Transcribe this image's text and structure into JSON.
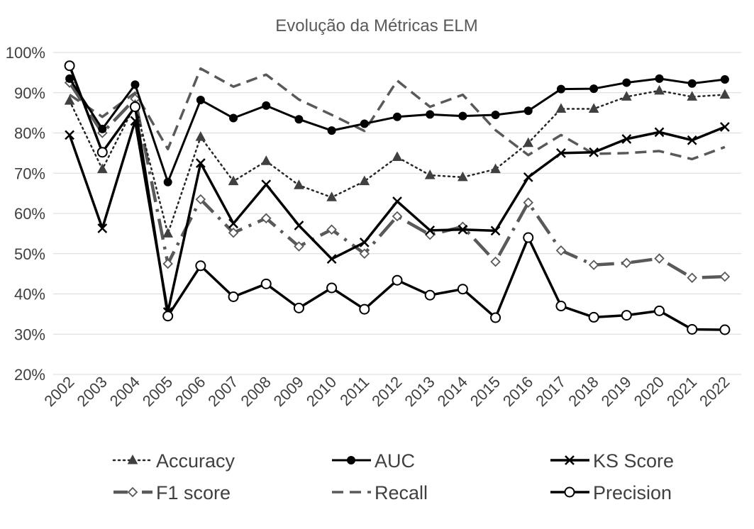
{
  "chart_data": {
    "type": "line",
    "title": "Evolução da Métricas ELM",
    "xlabel": "",
    "ylabel": "",
    "x": [
      "2002",
      "2003",
      "2004",
      "2005",
      "2006",
      "2007",
      "2008",
      "2009",
      "2010",
      "2011",
      "2012",
      "2013",
      "2014",
      "2015",
      "2016",
      "2017",
      "2018",
      "2019",
      "2020",
      "2021",
      "2022"
    ],
    "ylim": [
      0.2,
      1.0
    ],
    "yticks": [
      "20%",
      "30%",
      "40%",
      "50%",
      "60%",
      "70%",
      "80%",
      "90%",
      "100%"
    ],
    "grid": true,
    "legend_position": "bottom",
    "series": [
      {
        "name": "Accuracy",
        "color": "#262626",
        "style": "dotted",
        "marker": "triangle",
        "values": [
          0.88,
          0.71,
          0.87,
          0.55,
          0.79,
          0.68,
          0.73,
          0.67,
          0.64,
          0.68,
          0.74,
          0.695,
          0.69,
          0.71,
          0.775,
          0.86,
          0.86,
          0.89,
          0.905,
          0.89,
          0.895
        ]
      },
      {
        "name": "AUC",
        "color": "#000000",
        "style": "solid",
        "marker": "filled-circle",
        "values": [
          0.935,
          0.81,
          0.92,
          0.678,
          0.882,
          0.837,
          0.868,
          0.834,
          0.806,
          0.823,
          0.84,
          0.846,
          0.842,
          0.845,
          0.855,
          0.909,
          0.91,
          0.925,
          0.935,
          0.923,
          0.933
        ]
      },
      {
        "name": "KS Score",
        "color": "#000000",
        "style": "solid",
        "marker": "x",
        "values": [
          0.795,
          0.563,
          0.83,
          0.355,
          0.725,
          0.575,
          0.672,
          0.57,
          0.487,
          0.528,
          0.63,
          0.558,
          0.56,
          0.557,
          0.69,
          0.75,
          0.752,
          0.785,
          0.802,
          0.782,
          0.815
        ]
      },
      {
        "name": "F1 score",
        "color": "#595959",
        "style": "dash-dot",
        "marker": "hollow-diamond",
        "values": [
          0.925,
          0.8,
          0.885,
          0.475,
          0.635,
          0.552,
          0.588,
          0.518,
          0.56,
          0.5,
          0.593,
          0.547,
          0.567,
          0.48,
          0.627,
          0.508,
          0.472,
          0.477,
          0.488,
          0.44,
          0.443
        ]
      },
      {
        "name": "Recall",
        "color": "#595959",
        "style": "dashed",
        "marker": "none",
        "values": [
          0.895,
          0.84,
          0.9,
          0.76,
          0.96,
          0.915,
          0.945,
          0.883,
          0.845,
          0.805,
          0.93,
          0.865,
          0.895,
          0.807,
          0.745,
          0.795,
          0.748,
          0.75,
          0.755,
          0.735,
          0.765
        ]
      },
      {
        "name": "Precision",
        "color": "#000000",
        "style": "solid",
        "marker": "hollow-circle",
        "values": [
          0.967,
          0.752,
          0.865,
          0.345,
          0.47,
          0.393,
          0.425,
          0.365,
          0.415,
          0.362,
          0.434,
          0.397,
          0.412,
          0.341,
          0.54,
          0.37,
          0.342,
          0.347,
          0.358,
          0.312,
          0.311
        ]
      }
    ]
  }
}
